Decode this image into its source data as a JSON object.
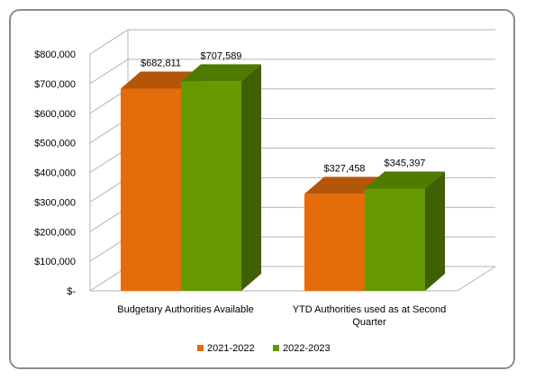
{
  "chart_data": {
    "type": "bar",
    "title": "",
    "xlabel": "",
    "ylabel": "",
    "ylim": [
      0,
      800000
    ],
    "yticks": [
      0,
      100000,
      200000,
      300000,
      400000,
      500000,
      600000,
      700000,
      800000
    ],
    "ytick_labels": [
      "$-",
      "$100,000",
      "$200,000",
      "$300,000",
      "$400,000",
      "$500,000",
      "$600,000",
      "$700,000",
      "$800,000"
    ],
    "categories": [
      [
        "Budgetary Authorities Available"
      ],
      [
        "YTD Authorities used as at Second",
        "Quarter"
      ]
    ],
    "series": [
      {
        "name": "2021-2022",
        "values": [
          682811,
          327458
        ],
        "labels": [
          "$682,811",
          "$327,458"
        ]
      },
      {
        "name": "2022-2023",
        "values": [
          707589,
          345397
        ],
        "labels": [
          "$707,589",
          "$345,397"
        ]
      }
    ],
    "grid": true,
    "legend_position": "bottom",
    "style": "3d-column"
  },
  "colors": {
    "series": [
      {
        "front": "#E46C0A",
        "top": "#B3560A",
        "side": "#A8520A"
      },
      {
        "front": "#669900",
        "top": "#4E7A00",
        "side": "#3E6000"
      }
    ],
    "grid": "#b3b3b3",
    "frame": "#8c8c8c"
  }
}
